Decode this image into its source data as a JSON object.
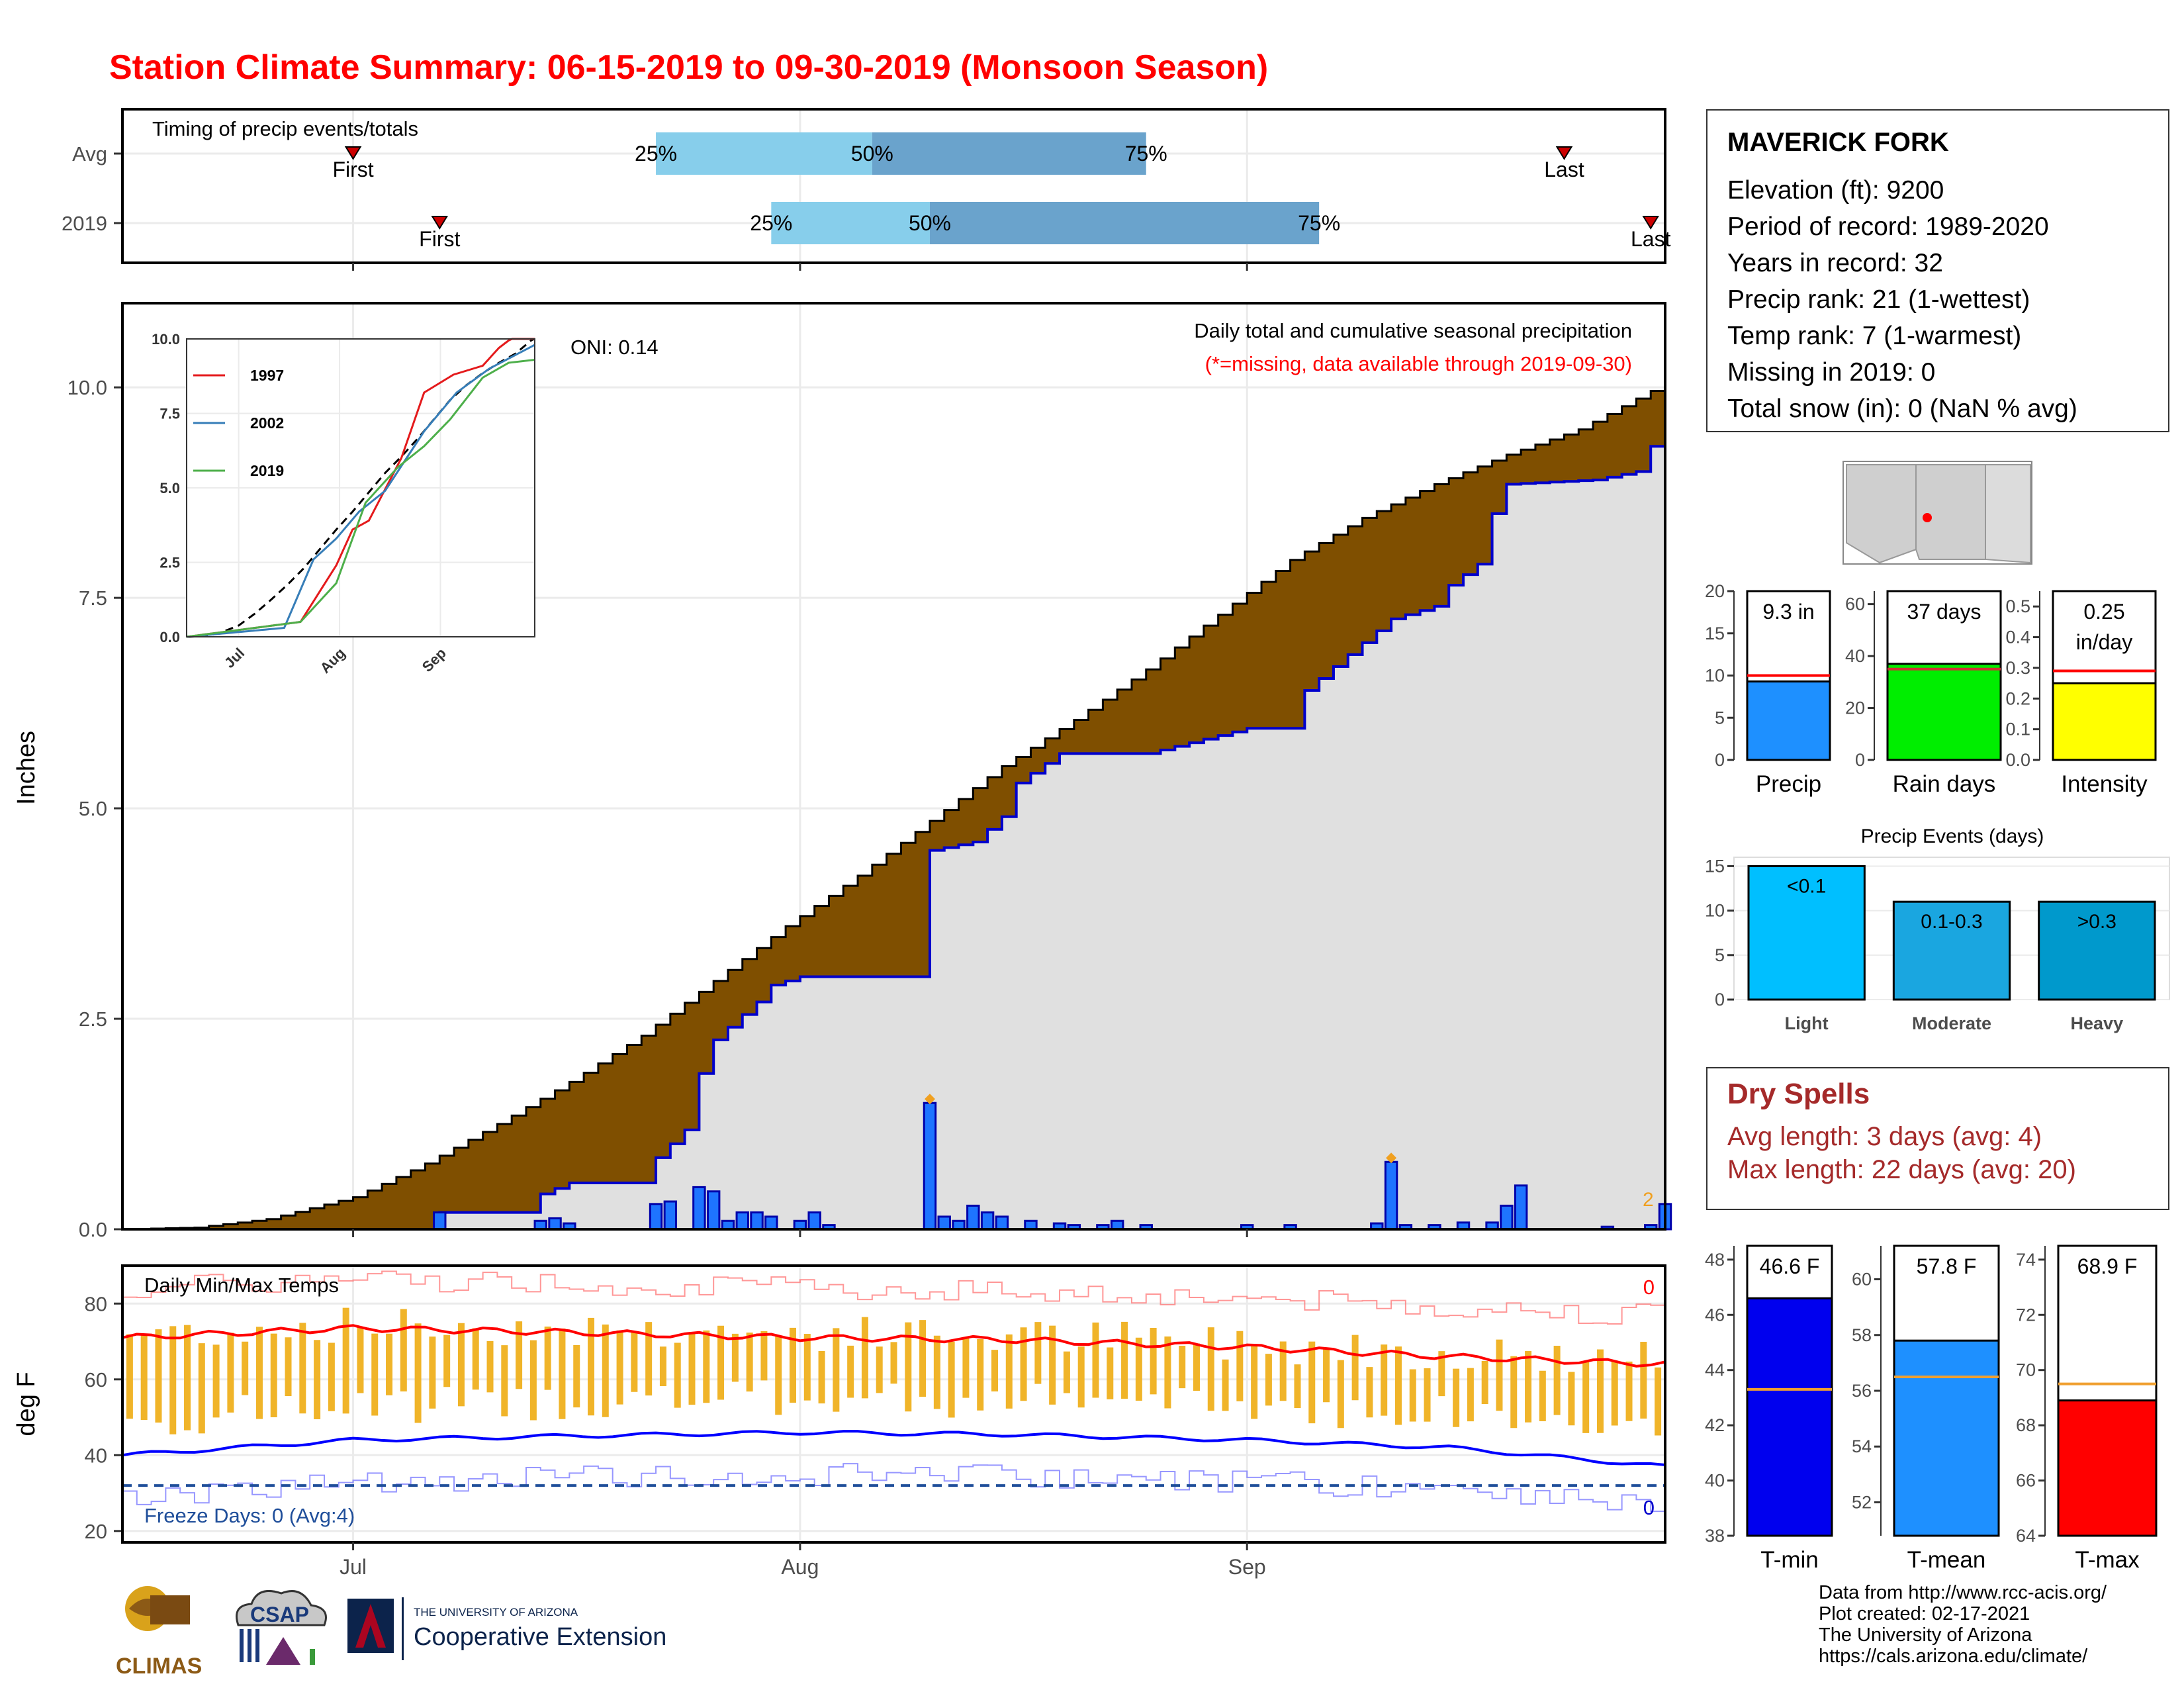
{
  "title": "Station Climate Summary: 06-15-2019 to 09-30-2019 (Monsoon Season)",
  "colors": {
    "title": "#ff0000",
    "avg_cumulative": "#7f4f00",
    "obs_cumulative_line": "#0000cc",
    "obs_fill": "#e0e0e0",
    "daily_bars": "#1e74ff",
    "temp_bars": "#f0b429",
    "tmax_line": "#ff0000",
    "tmin_line": "#0000ff"
  },
  "station": {
    "name": "MAVERICK FORK",
    "lines": [
      "Elevation (ft): 9200",
      "Period of record: 1989-2020",
      "Years in record: 32",
      "Precip rank: 21 (1-wettest)",
      "Temp rank: 7 (1-warmest)",
      "Missing in 2019: 0",
      "Total snow (in): 0 (NaN % avg)"
    ]
  },
  "timing": {
    "title": "Timing of precip events/totals",
    "rows": [
      {
        "label": "Avg",
        "first": "First",
        "last": "Last",
        "p25": "25%",
        "p50": "50%",
        "p75": "75%",
        "first_date": "2019-07-01",
        "last_date": "2019-09-23",
        "q25_date": "2019-07-22",
        "q50_date": "2019-08-06",
        "q75_date": "2019-08-25"
      },
      {
        "label": "2019",
        "first": "First",
        "last": "Last",
        "p25": "25%",
        "p50": "50%",
        "p75": "75%",
        "first_date": "2019-07-07",
        "last_date": "2019-09-29",
        "q25_date": "2019-07-30",
        "q50_date": "2019-08-10",
        "q75_date": "2019-09-06"
      }
    ]
  },
  "main": {
    "ylabel": "Inches",
    "annotation_title": "Daily total and cumulative seasonal precipitation",
    "annotation_missing": "(*=missing, data available through 2019-09-30)",
    "oni": "ONI: 0.14",
    "x_ticks": [
      "Jul",
      "Aug",
      "Sep"
    ],
    "y_ticks": [
      "0.0",
      "2.5",
      "5.0",
      "7.5",
      "10.0"
    ],
    "end_label": "2"
  },
  "inset": {
    "legend": [
      "1997",
      "2002",
      "2019"
    ],
    "x_ticks": [
      "Jul",
      "Aug",
      "Sep"
    ],
    "y_ticks": [
      "0.0",
      "2.5",
      "5.0",
      "7.5",
      "10.0"
    ]
  },
  "temps": {
    "title": "Daily Min/Max Temps",
    "ylabel": "deg F",
    "y_ticks": [
      "20",
      "40",
      "60",
      "80"
    ],
    "x_ticks": [
      "Jul",
      "Aug",
      "Sep"
    ],
    "freeze_label": "Freeze Days: 0 (Avg:4)",
    "count_top": "0",
    "count_bottom": "0"
  },
  "bars": {
    "precip": {
      "label": "Precip",
      "value_label": "9.3 in",
      "y_ticks": [
        "0",
        "5",
        "10",
        "15",
        "20"
      ]
    },
    "raindays": {
      "label": "Rain days",
      "value_label": "37 days",
      "y_ticks": [
        "0",
        "20",
        "40",
        "60"
      ]
    },
    "intensity": {
      "label": "Intensity",
      "value_label": "0.25",
      "value_unit": "in/day",
      "y_ticks": [
        "0.0",
        "0.1",
        "0.2",
        "0.3",
        "0.4",
        "0.5"
      ]
    }
  },
  "events": {
    "title": "Precip Events (days)",
    "categories": [
      "Light",
      "Moderate",
      "Heavy"
    ],
    "labels": [
      "<0.1",
      "0.1-0.3",
      ">0.3"
    ],
    "y_ticks": [
      "0",
      "5",
      "10",
      "15"
    ]
  },
  "dry_spells": {
    "title": "Dry Spells",
    "avg_line": "Avg length: 3 days (avg: 4)",
    "max_line": "Max length: 22 days (avg: 20)"
  },
  "temp_bars": {
    "tmin": {
      "label": "T-min",
      "value_label": "46.6 F",
      "y_ticks": [
        "38",
        "40",
        "42",
        "44",
        "46",
        "48"
      ]
    },
    "tmean": {
      "label": "T-mean",
      "value_label": "57.8 F",
      "y_ticks": [
        "52",
        "54",
        "56",
        "58",
        "60"
      ]
    },
    "tmax": {
      "label": "T-max",
      "value_label": "68.9 F",
      "y_ticks": [
        "64",
        "66",
        "68",
        "70",
        "72",
        "74"
      ]
    }
  },
  "credits": [
    "Data from http://www.rcc-acis.org/",
    "Plot created: 02-17-2021",
    "The University of Arizona",
    "https://cals.arizona.edu/climate/"
  ],
  "logos": {
    "climas": "CLIMAS",
    "csap": "CSAP",
    "ua_small": "THE UNIVERSITY OF ARIZONA",
    "ua_big": "Cooperative Extension"
  },
  "chart_data": [
    {
      "type": "bar",
      "title": "Timing of precip events/totals",
      "categories": [
        "Avg",
        "2019"
      ],
      "series": [
        {
          "name": "First",
          "values": [
            "2019-07-01",
            "2019-07-07"
          ]
        },
        {
          "name": "25%",
          "values": [
            "2019-07-22",
            "2019-07-30"
          ]
        },
        {
          "name": "50%",
          "values": [
            "2019-08-06",
            "2019-08-10"
          ]
        },
        {
          "name": "75%",
          "values": [
            "2019-08-25",
            "2019-09-06"
          ]
        },
        {
          "name": "Last",
          "values": [
            "2019-09-23",
            "2019-09-29"
          ]
        }
      ]
    },
    {
      "type": "area",
      "title": "Daily total and cumulative seasonal precipitation",
      "ylabel": "Inches",
      "ylim": [
        0,
        11
      ],
      "x_range": [
        "2019-06-15",
        "2019-09-30"
      ],
      "avg_cumulative": {
        "x": [
          "2019-06-15",
          "2019-06-20",
          "2019-06-25",
          "2019-07-01",
          "2019-07-06",
          "2019-07-11",
          "2019-07-16",
          "2019-07-21",
          "2019-07-26",
          "2019-07-31",
          "2019-08-05",
          "2019-08-10",
          "2019-08-15",
          "2019-08-20",
          "2019-08-25",
          "2019-08-30",
          "2019-09-04",
          "2019-09-09",
          "2019-09-14",
          "2019-09-19",
          "2019-09-24",
          "2019-09-30"
        ],
        "y": [
          0,
          0.02,
          0.12,
          0.38,
          0.78,
          1.25,
          1.75,
          2.3,
          2.95,
          3.6,
          4.2,
          4.85,
          5.5,
          6.05,
          6.65,
          7.3,
          7.95,
          8.45,
          8.85,
          9.2,
          9.5,
          10.05
        ]
      },
      "obs_cumulative": {
        "x": [
          "2019-06-15",
          "2019-07-06",
          "2019-07-07",
          "2019-07-13",
          "2019-07-14",
          "2019-07-16",
          "2019-07-21",
          "2019-07-22",
          "2019-07-24",
          "2019-07-25",
          "2019-07-26",
          "2019-07-29",
          "2019-07-30",
          "2019-08-01",
          "2019-08-09",
          "2019-08-10",
          "2019-08-13",
          "2019-08-15",
          "2019-08-16",
          "2019-08-19",
          "2019-08-25",
          "2019-09-01",
          "2019-09-04",
          "2019-09-05",
          "2019-09-11",
          "2019-09-12",
          "2019-09-14",
          "2019-09-15",
          "2019-09-17",
          "2019-09-18",
          "2019-09-19",
          "2019-09-25",
          "2019-09-28",
          "2019-09-29",
          "2019-09-30"
        ],
        "y": [
          0,
          0,
          0.2,
          0.2,
          0.42,
          0.55,
          0.55,
          0.85,
          1.18,
          1.85,
          2.25,
          2.7,
          2.9,
          3.0,
          3.0,
          4.5,
          4.6,
          4.9,
          5.3,
          5.65,
          5.65,
          5.95,
          5.95,
          6.4,
          7.25,
          7.3,
          7.4,
          7.65,
          7.9,
          8.5,
          8.85,
          8.9,
          9.0,
          9.3,
          9.3
        ]
      },
      "daily_precip": {
        "x": [
          "2019-07-07",
          "2019-07-14",
          "2019-07-15",
          "2019-07-16",
          "2019-07-22",
          "2019-07-23",
          "2019-07-25",
          "2019-07-26",
          "2019-07-27",
          "2019-07-28",
          "2019-07-29",
          "2019-07-30",
          "2019-08-01",
          "2019-08-02",
          "2019-08-03",
          "2019-08-10",
          "2019-08-11",
          "2019-08-12",
          "2019-08-13",
          "2019-08-14",
          "2019-08-15",
          "2019-08-17",
          "2019-08-19",
          "2019-08-20",
          "2019-08-22",
          "2019-08-23",
          "2019-08-25",
          "2019-09-01",
          "2019-09-04",
          "2019-09-10",
          "2019-09-11",
          "2019-09-12",
          "2019-09-14",
          "2019-09-16",
          "2019-09-18",
          "2019-09-19",
          "2019-09-20",
          "2019-09-26",
          "2019-09-29",
          "2019-09-30"
        ],
        "y": [
          0.2,
          0.1,
          0.13,
          0.07,
          0.3,
          0.33,
          0.5,
          0.45,
          0.1,
          0.2,
          0.2,
          0.15,
          0.1,
          0.2,
          0.05,
          1.5,
          0.15,
          0.1,
          0.28,
          0.2,
          0.15,
          0.1,
          0.07,
          0.05,
          0.05,
          0.1,
          0.05,
          0.05,
          0.05,
          0.07,
          0.8,
          0.05,
          0.05,
          0.08,
          0.08,
          0.28,
          0.52,
          0.03,
          0.05,
          0.3
        ]
      }
    },
    {
      "type": "line",
      "title": "Inset cumulative precipitation",
      "ylim": [
        0,
        10
      ],
      "series": [
        {
          "name": "1997",
          "x": [
            "2019-06-15",
            "2019-07-20",
            "2019-07-31",
            "2019-08-05",
            "2019-08-10",
            "2019-08-20",
            "2019-08-27",
            "2019-09-05",
            "2019-09-14",
            "2019-09-19",
            "2019-09-25",
            "2019-09-30"
          ],
          "y": [
            0,
            0.5,
            2.4,
            3.6,
            3.9,
            6.0,
            8.2,
            8.8,
            9.1,
            9.7,
            10.2,
            10.4
          ]
        },
        {
          "name": "2002",
          "x": [
            "2019-06-15",
            "2019-07-15",
            "2019-07-24",
            "2019-07-31",
            "2019-08-07",
            "2019-08-15",
            "2019-08-27",
            "2019-09-06",
            "2019-09-16",
            "2019-09-30"
          ],
          "y": [
            0,
            0.3,
            2.6,
            3.3,
            4.2,
            4.9,
            6.9,
            8.2,
            9.0,
            9.8
          ]
        },
        {
          "name": "2019",
          "x": [
            "2019-06-15",
            "2019-07-20",
            "2019-07-31",
            "2019-08-09",
            "2019-08-19",
            "2019-08-27",
            "2019-09-04",
            "2019-09-14",
            "2019-09-22",
            "2019-09-30"
          ],
          "y": [
            0,
            0.5,
            1.8,
            4.5,
            5.7,
            6.4,
            7.3,
            8.7,
            9.2,
            9.3
          ]
        }
      ]
    },
    {
      "type": "line",
      "title": "Daily Min/Max Temps",
      "ylabel": "deg F",
      "ylim": [
        17,
        90
      ],
      "freeze_threshold": 32,
      "series": [
        {
          "name": "avg_tmax",
          "x": [
            "2019-06-15",
            "2019-07-01",
            "2019-07-15",
            "2019-08-01",
            "2019-08-15",
            "2019-09-01",
            "2019-09-15",
            "2019-09-30"
          ],
          "y": [
            71,
            73.5,
            72.5,
            71,
            70.5,
            68.5,
            66,
            64
          ]
        },
        {
          "name": "avg_tmin",
          "x": [
            "2019-06-15",
            "2019-07-01",
            "2019-07-15",
            "2019-08-01",
            "2019-08-15",
            "2019-09-01",
            "2019-09-15",
            "2019-09-30"
          ],
          "y": [
            40,
            44,
            45,
            46,
            45.5,
            44,
            42,
            37
          ]
        }
      ]
    },
    {
      "type": "bar",
      "categories": [
        "Precip",
        "Rain days",
        "Intensity"
      ],
      "series": [
        {
          "name": "2019",
          "values": [
            9.3,
            37,
            0.25
          ]
        },
        {
          "name": "Avg",
          "values": [
            10,
            35,
            0.29
          ]
        }
      ],
      "ylims": [
        [
          0,
          20
        ],
        [
          0,
          65
        ],
        [
          0,
          0.55
        ]
      ]
    },
    {
      "type": "bar",
      "title": "Precip Events (days)",
      "categories": [
        "Light",
        "Moderate",
        "Heavy"
      ],
      "values": [
        15,
        11,
        11
      ],
      "ylim": [
        0,
        16
      ]
    },
    {
      "type": "bar",
      "categories": [
        "T-min",
        "T-mean",
        "T-max"
      ],
      "series": [
        {
          "name": "2019",
          "values": [
            46.6,
            57.8,
            68.9
          ]
        },
        {
          "name": "Avg",
          "values": [
            43.3,
            56.5,
            69.5
          ]
        }
      ],
      "ylims": [
        [
          38,
          48.5
        ],
        [
          50.8,
          61.2
        ],
        [
          64,
          74.5
        ]
      ]
    }
  ]
}
